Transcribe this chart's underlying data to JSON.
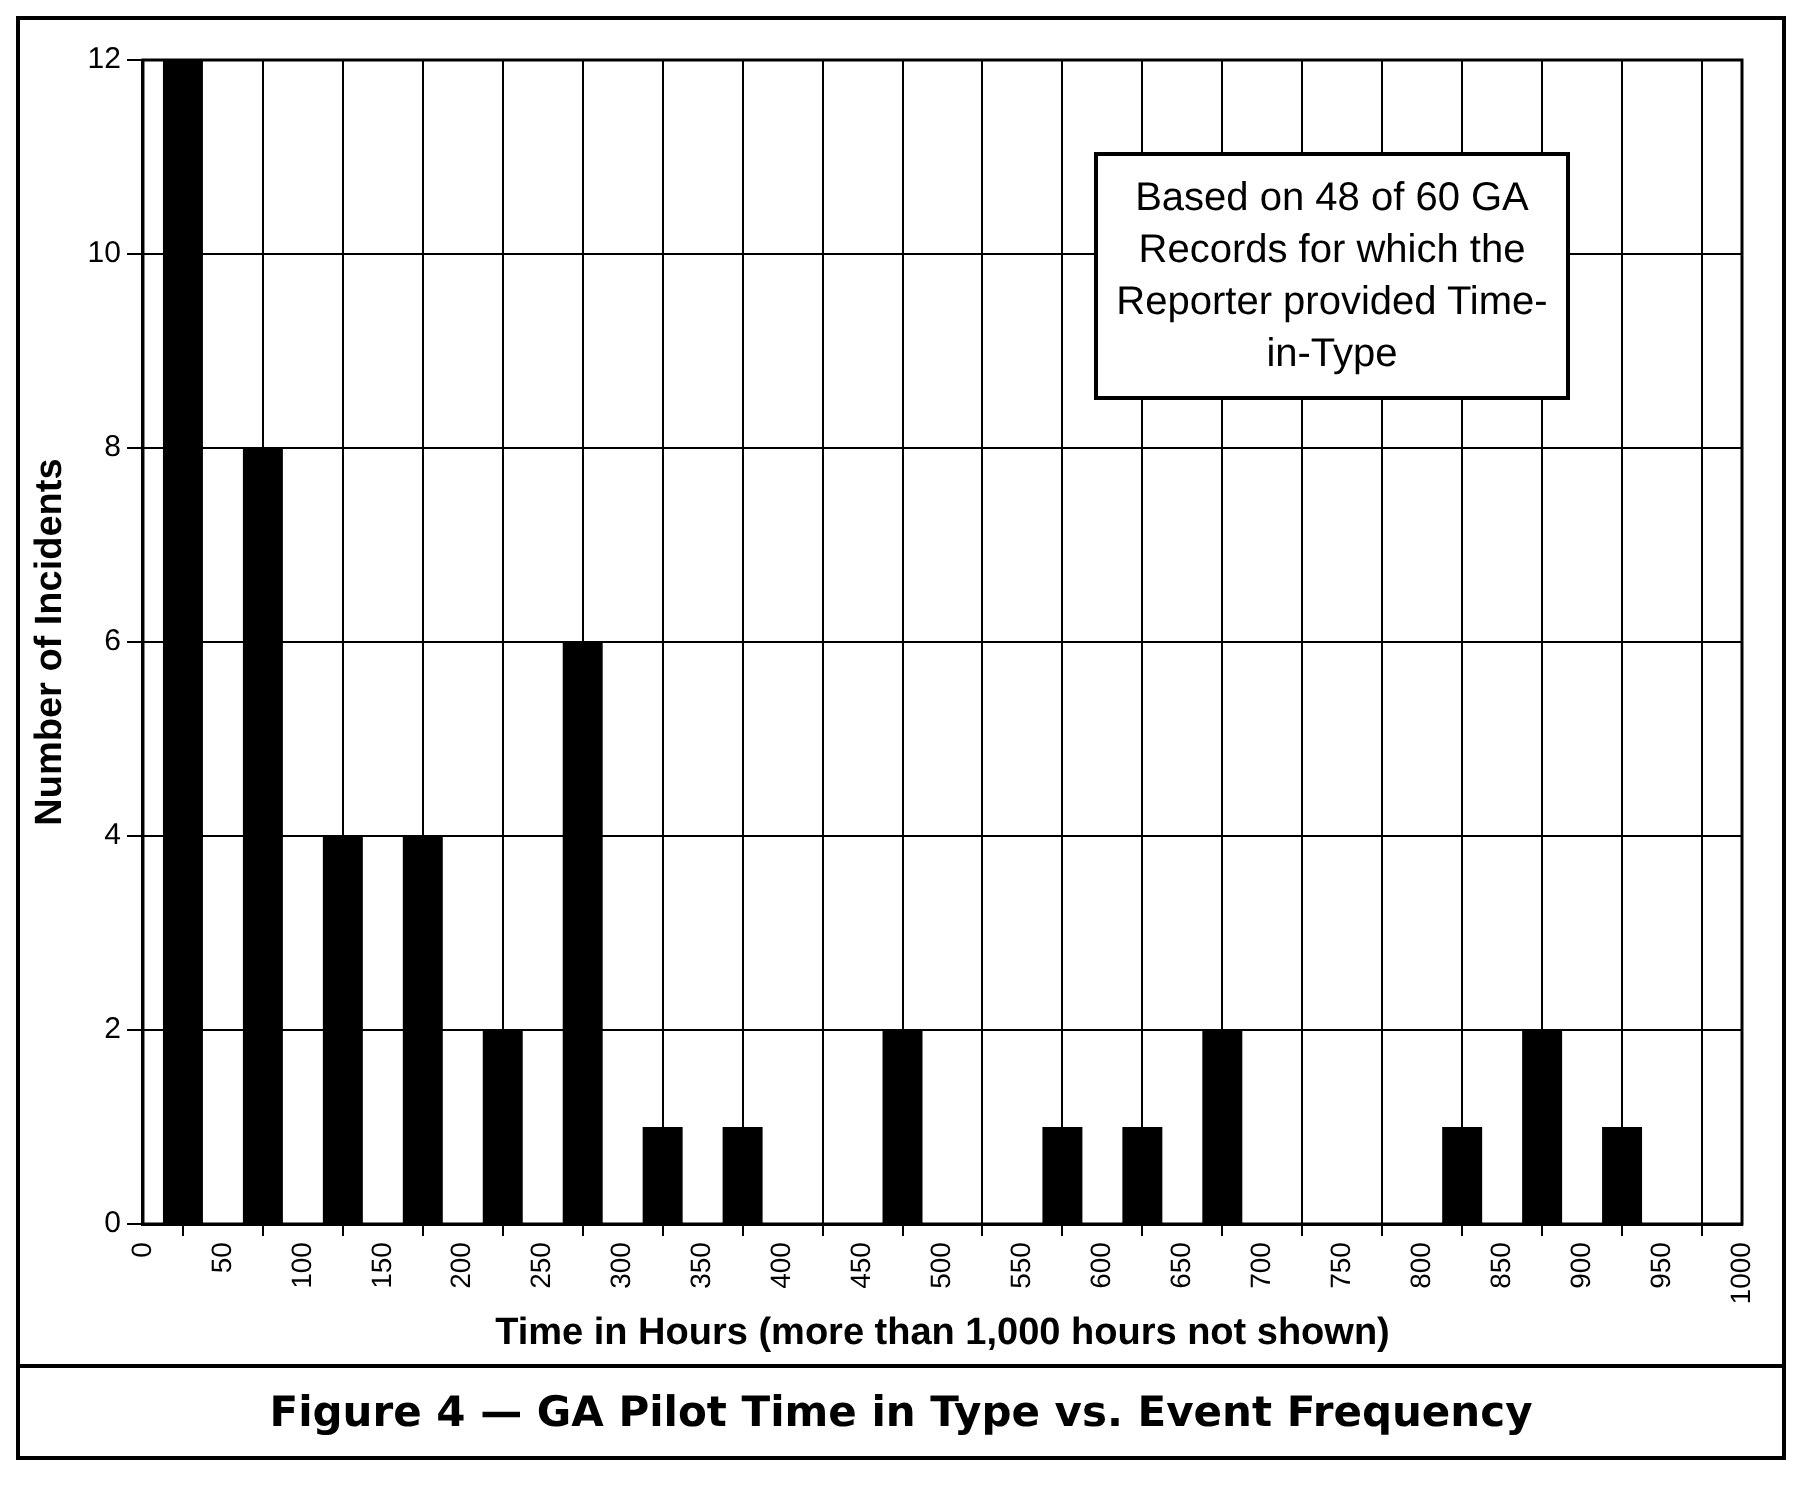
{
  "chart_data": {
    "type": "histogram",
    "title": "Figure 4 — GA Pilot Time in Type vs. Event Frequency",
    "xlabel": "Time in Hours (more than 1,000 hours not shown)",
    "ylabel": "Number of Incidents",
    "bins": [
      0,
      50,
      100,
      150,
      200,
      250,
      300,
      350,
      400,
      450,
      500,
      550,
      600,
      650,
      700,
      750,
      800,
      850,
      900,
      950,
      1000
    ],
    "values": [
      12,
      8,
      4,
      4,
      2,
      6,
      1,
      1,
      0,
      2,
      0,
      1,
      1,
      2,
      0,
      0,
      1,
      2,
      1,
      0
    ],
    "color": "#000000",
    "xlim": [
      0,
      1000
    ],
    "xticks": [
      0,
      50,
      100,
      150,
      200,
      250,
      300,
      350,
      400,
      450,
      500,
      550,
      600,
      650,
      700,
      750,
      800,
      850,
      900,
      950,
      1000
    ],
    "ylim": [
      0,
      12
    ],
    "yticks": [
      0,
      2,
      4,
      6,
      8,
      10,
      12
    ],
    "grid": true,
    "annotations": [
      "Based on 48 of 60 GA Records for which the Reporter provided Time-in-Type"
    ]
  }
}
